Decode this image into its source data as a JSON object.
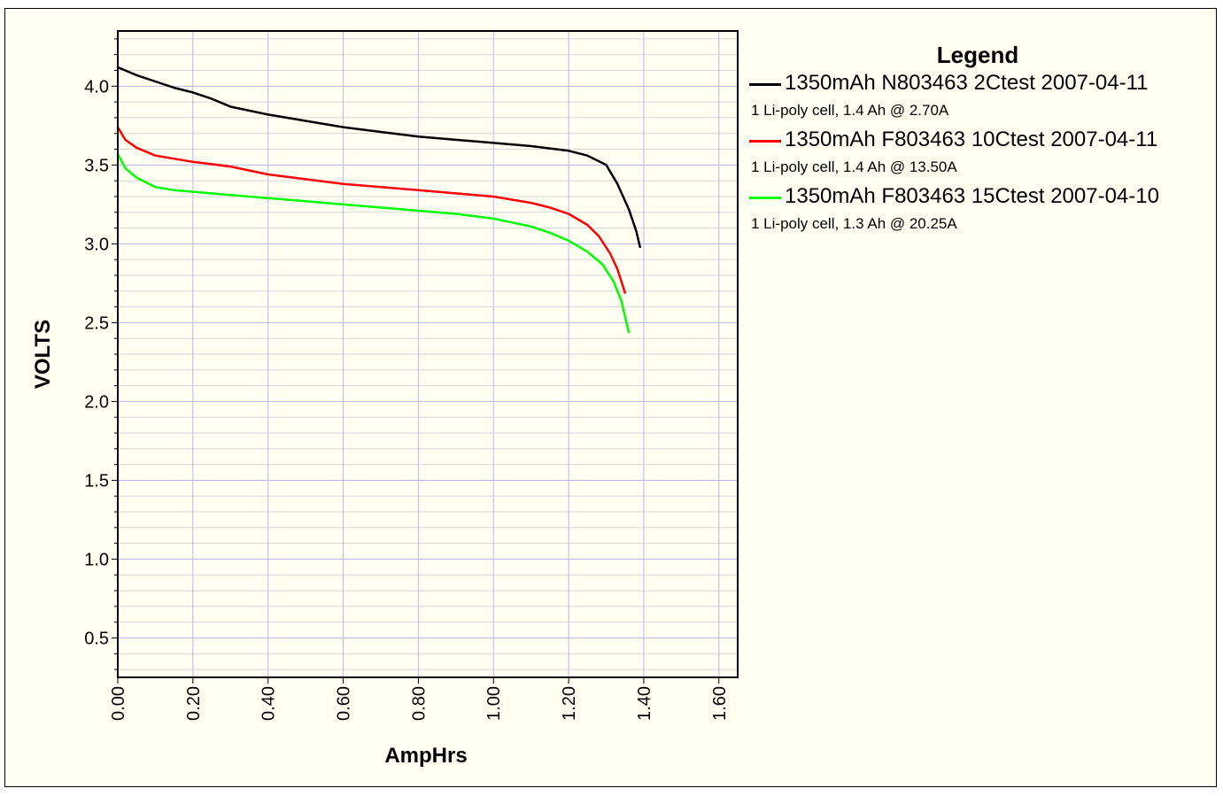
{
  "chart_data": {
    "type": "line",
    "xlabel": "AmpHrs",
    "ylabel": "VOLTS",
    "xlim": [
      0,
      1.65
    ],
    "ylim": [
      0.25,
      4.35
    ],
    "x_ticks": [
      "0.00",
      "0.20",
      "0.40",
      "0.60",
      "0.80",
      "1.00",
      "1.20",
      "1.40",
      "1.60"
    ],
    "y_ticks": [
      "0.5",
      "1.0",
      "1.5",
      "2.0",
      "2.5",
      "3.0",
      "3.5",
      "4.0"
    ],
    "grid": true,
    "legend": {
      "title": "Legend",
      "position": "right"
    },
    "series": [
      {
        "name": "1350mAh N803463 2Ctest 2007-04-11",
        "description": "1 Li-poly cell, 1.4 Ah @ 2.70A",
        "color": "#000000",
        "points": [
          [
            0.0,
            4.12
          ],
          [
            0.05,
            4.07
          ],
          [
            0.1,
            4.03
          ],
          [
            0.15,
            3.99
          ],
          [
            0.2,
            3.96
          ],
          [
            0.25,
            3.92
          ],
          [
            0.3,
            3.87
          ],
          [
            0.4,
            3.82
          ],
          [
            0.5,
            3.78
          ],
          [
            0.6,
            3.74
          ],
          [
            0.7,
            3.71
          ],
          [
            0.8,
            3.68
          ],
          [
            0.9,
            3.66
          ],
          [
            1.0,
            3.64
          ],
          [
            1.1,
            3.62
          ],
          [
            1.2,
            3.59
          ],
          [
            1.25,
            3.56
          ],
          [
            1.3,
            3.5
          ],
          [
            1.33,
            3.38
          ],
          [
            1.36,
            3.22
          ],
          [
            1.38,
            3.08
          ],
          [
            1.39,
            2.98
          ]
        ]
      },
      {
        "name": "1350mAh F803463 10Ctest 2007-04-11",
        "description": "1 Li-poly cell, 1.4 Ah @ 13.50A",
        "color": "#ff0000",
        "points": [
          [
            0.0,
            3.74
          ],
          [
            0.02,
            3.66
          ],
          [
            0.05,
            3.61
          ],
          [
            0.1,
            3.56
          ],
          [
            0.2,
            3.52
          ],
          [
            0.3,
            3.49
          ],
          [
            0.4,
            3.44
          ],
          [
            0.5,
            3.41
          ],
          [
            0.6,
            3.38
          ],
          [
            0.7,
            3.36
          ],
          [
            0.8,
            3.34
          ],
          [
            0.9,
            3.32
          ],
          [
            1.0,
            3.3
          ],
          [
            1.1,
            3.26
          ],
          [
            1.15,
            3.23
          ],
          [
            1.2,
            3.19
          ],
          [
            1.25,
            3.12
          ],
          [
            1.28,
            3.05
          ],
          [
            1.31,
            2.94
          ],
          [
            1.33,
            2.84
          ],
          [
            1.35,
            2.69
          ]
        ]
      },
      {
        "name": "1350mAh F803463 15Ctest 2007-04-10",
        "description": "1 Li-poly cell, 1.3 Ah @ 20.25A",
        "color": "#00ff00",
        "points": [
          [
            0.0,
            3.57
          ],
          [
            0.02,
            3.48
          ],
          [
            0.05,
            3.42
          ],
          [
            0.1,
            3.36
          ],
          [
            0.15,
            3.34
          ],
          [
            0.2,
            3.33
          ],
          [
            0.3,
            3.31
          ],
          [
            0.4,
            3.29
          ],
          [
            0.5,
            3.27
          ],
          [
            0.6,
            3.25
          ],
          [
            0.7,
            3.23
          ],
          [
            0.8,
            3.21
          ],
          [
            0.9,
            3.19
          ],
          [
            1.0,
            3.16
          ],
          [
            1.1,
            3.11
          ],
          [
            1.15,
            3.07
          ],
          [
            1.2,
            3.02
          ],
          [
            1.25,
            2.95
          ],
          [
            1.29,
            2.87
          ],
          [
            1.32,
            2.76
          ],
          [
            1.34,
            2.64
          ],
          [
            1.36,
            2.44
          ]
        ]
      }
    ]
  }
}
